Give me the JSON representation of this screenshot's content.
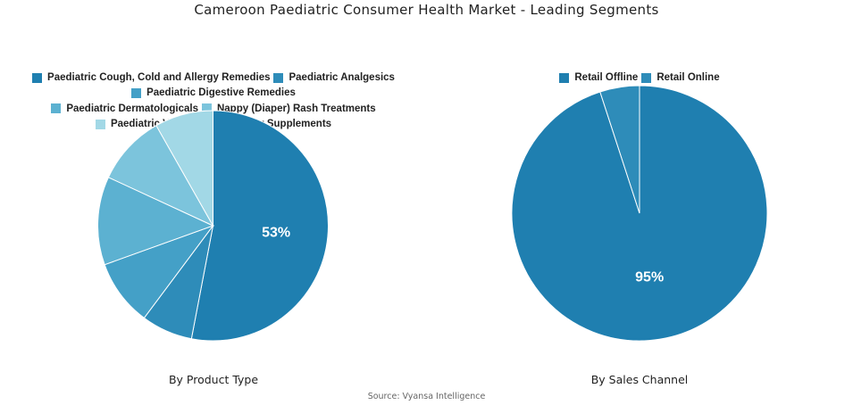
{
  "title": "Cameroon Paediatric Consumer Health Market - Leading Segments",
  "source": "Source: Vyansa Intelligence",
  "chart_data": [
    {
      "type": "pie",
      "subtitle": "By Product Type",
      "legend_position": "top",
      "categories": [
        "Paediatric Cough, Cold and Allergy Remedies",
        "Paediatric Analgesics",
        "Paediatric Digestive Remedies",
        "Paediatric Dermatologicals",
        "Nappy (Diaper) Rash Treatments",
        "Paediatric Vitamins and Dietary Supplements"
      ],
      "values": [
        53,
        7.2,
        9.3,
        12.4,
        9.9,
        8.2
      ],
      "data_labels": [
        "53%",
        "",
        "",
        "",
        "",
        ""
      ],
      "colors": [
        "#1f7fb0",
        "#2e8cb9",
        "#44a0c7",
        "#5cb1d1",
        "#7cc4dc",
        "#a2d8e6"
      ]
    },
    {
      "type": "pie",
      "subtitle": "By Sales Channel",
      "legend_position": "top",
      "categories": [
        "Retail Offline",
        "Retail Online"
      ],
      "values": [
        95,
        5
      ],
      "data_labels": [
        "95%",
        ""
      ],
      "colors": [
        "#1f7fb0",
        "#2e8cb9"
      ]
    }
  ]
}
